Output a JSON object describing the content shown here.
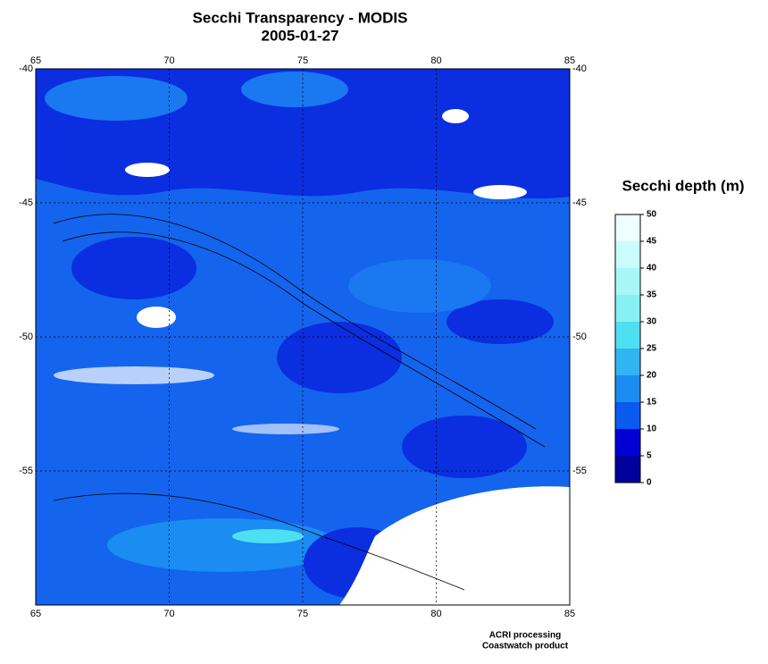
{
  "title": "Secchi Transparency - MODIS",
  "subtitle": "2005-01-27",
  "map": {
    "lonlim": [
      65,
      85
    ],
    "latlim": [
      -60,
      -40
    ],
    "lonticks": [
      65,
      70,
      75,
      80,
      85
    ],
    "latticks": [
      -40,
      -45,
      -50,
      -55
    ]
  },
  "colorbar": {
    "title": "Secchi depth (m)",
    "lim": [
      0,
      50
    ],
    "ticks": [
      0,
      5,
      10,
      15,
      20,
      25,
      30,
      35,
      40,
      45,
      50
    ],
    "colors": [
      "#00009a",
      "#0000d4",
      "#0a5af0",
      "#1a8cf2",
      "#30b4f2",
      "#4ee0f2",
      "#86f0f2",
      "#a8f6f6",
      "#cafcfc",
      "#ecfefe"
    ]
  },
  "credits": [
    "ACRI processing",
    "Coastwatch product"
  ]
}
